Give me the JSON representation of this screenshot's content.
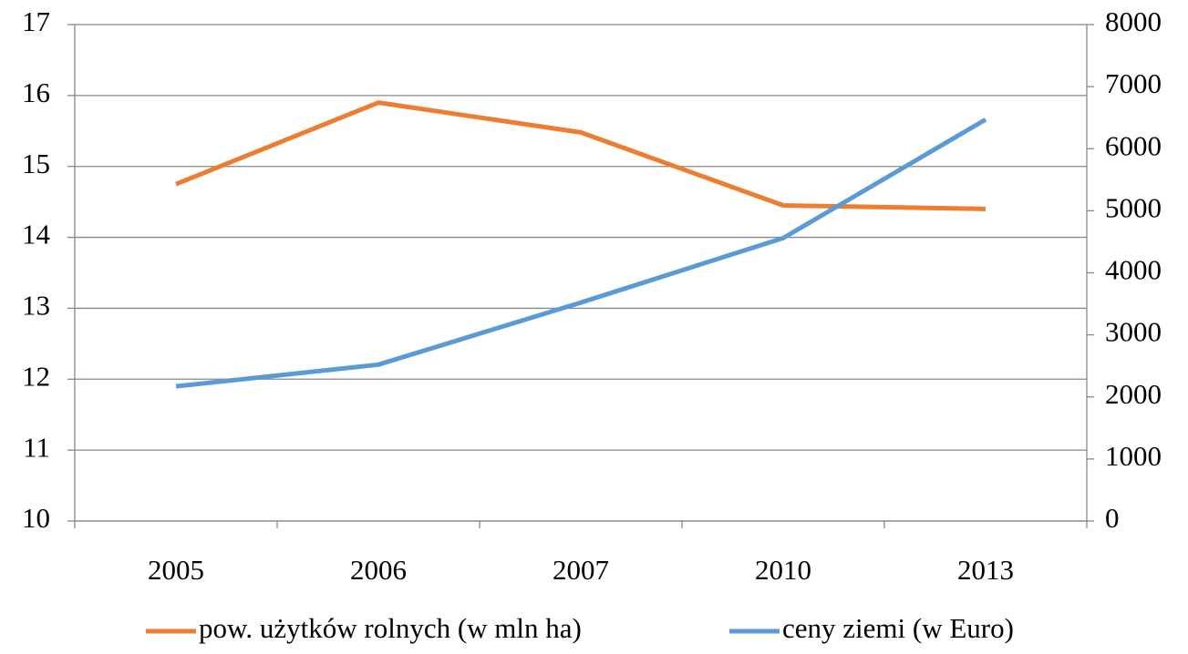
{
  "chart_data": {
    "type": "line",
    "categories": [
      "2005",
      "2006",
      "2007",
      "2010",
      "2013"
    ],
    "series": [
      {
        "name": "pow. użytków rolnych (w mln ha)",
        "color": "#ed7d31",
        "values": [
          14.75,
          15.9,
          15.48,
          14.45,
          14.4
        ]
      },
      {
        "name": "ceny ziemi (w Euro)",
        "color": "#5b9bd5",
        "axis": "y2",
        "values": [
          2170,
          2520,
          3520,
          4560,
          6470
        ]
      }
    ],
    "ylim": [
      10,
      17
    ],
    "yticks": [
      10,
      11,
      12,
      13,
      14,
      15,
      16,
      17
    ],
    "y2lim": [
      0,
      8000
    ],
    "y2ticks": [
      0,
      1000,
      2000,
      3000,
      4000,
      5000,
      6000,
      7000,
      8000
    ],
    "grid": true,
    "legend": "bottom"
  }
}
